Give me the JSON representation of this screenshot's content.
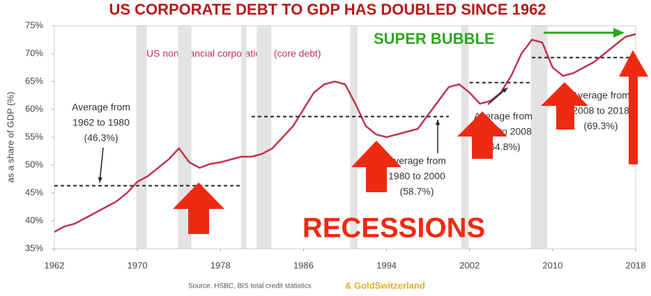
{
  "chart_data": {
    "type": "line",
    "title": "US CORPORATE DEBT TO GDP HAS DOUBLED SINCE 1962",
    "y_label": "as a share of GDP (%)",
    "x": [
      1962,
      1963,
      1964,
      1965,
      1966,
      1967,
      1968,
      1969,
      1970,
      1971,
      1972,
      1973,
      1974,
      1975,
      1976,
      1977,
      1978,
      1979,
      1980,
      1981,
      1982,
      1983,
      1984,
      1985,
      1986,
      1987,
      1988,
      1989,
      1990,
      1991,
      1992,
      1993,
      1994,
      1995,
      1996,
      1997,
      1998,
      1999,
      2000,
      2001,
      2002,
      2003,
      2004,
      2005,
      2006,
      2007,
      2008,
      2009,
      2010,
      2011,
      2012,
      2013,
      2014,
      2015,
      2016,
      2017,
      2018
    ],
    "series": [
      {
        "name": "US nonfinancial corporations (core debt)",
        "color": "#c0334a",
        "values": [
          38,
          39,
          39.5,
          40.5,
          41.5,
          42.5,
          43.5,
          45,
          47,
          48,
          49.5,
          51,
          53,
          50.5,
          49.5,
          50.2,
          50.5,
          51,
          51.5,
          51.5,
          52,
          53,
          55,
          57,
          60,
          63,
          64.5,
          65,
          64.5,
          61,
          57,
          55.5,
          55,
          55.5,
          56,
          56.5,
          59,
          61.5,
          64,
          64.5,
          63,
          61,
          61.5,
          63,
          66,
          70,
          72.5,
          72,
          67.5,
          66,
          66.5,
          67.5,
          68.5,
          70,
          71.5,
          73,
          73.5
        ]
      }
    ],
    "xlim": [
      1962,
      2018
    ],
    "xticks": [
      1962,
      1970,
      1978,
      1986,
      1994,
      2002,
      2010,
      2018
    ],
    "ylim": [
      35,
      75
    ],
    "yticks": [
      {
        "value": 35,
        "label": "35%"
      },
      {
        "value": 40,
        "label": "40%"
      },
      {
        "value": 45,
        "label": "45%"
      },
      {
        "value": 50,
        "label": "50%"
      },
      {
        "value": 55,
        "label": "55%"
      },
      {
        "value": 60,
        "label": "60%"
      },
      {
        "value": 65,
        "label": "65%"
      },
      {
        "value": 70,
        "label": "70%"
      },
      {
        "value": 75,
        "label": "75%"
      }
    ],
    "grid": false,
    "recessions": [
      [
        1969.9,
        1970.9
      ],
      [
        1973.9,
        1975.2
      ],
      [
        1980,
        1980.5
      ],
      [
        1981.5,
        1982.9
      ],
      [
        1990.5,
        1991.2
      ],
      [
        2001.2,
        2001.9
      ],
      [
        2007.9,
        2009.5
      ]
    ],
    "averages": [
      {
        "lines": [
          "Average from",
          "1962 to 1980",
          "(46.3%)"
        ],
        "value": 46.3,
        "start": 1962,
        "end": 1980
      },
      {
        "lines": [
          "Average from",
          "1980 to 2000",
          "(58.7%)"
        ],
        "value": 58.7,
        "start": 1981,
        "end": 2000
      },
      {
        "lines": [
          "Average from",
          "2002 to 2008",
          "(64.8%)"
        ],
        "value": 64.8,
        "start": 2002,
        "end": 2008
      },
      {
        "lines": [
          "Average from",
          "2008 to 2018",
          "(69.3%)"
        ],
        "value": 69.3,
        "start": 2008,
        "end": 2018
      }
    ],
    "annotations": {
      "bubble": "SUPER BUBBLE",
      "recessions": "RECESSIONS"
    },
    "source": "Source: HSBC, BIS total credit statistics",
    "credit": "& GoldSwitzerland"
  }
}
